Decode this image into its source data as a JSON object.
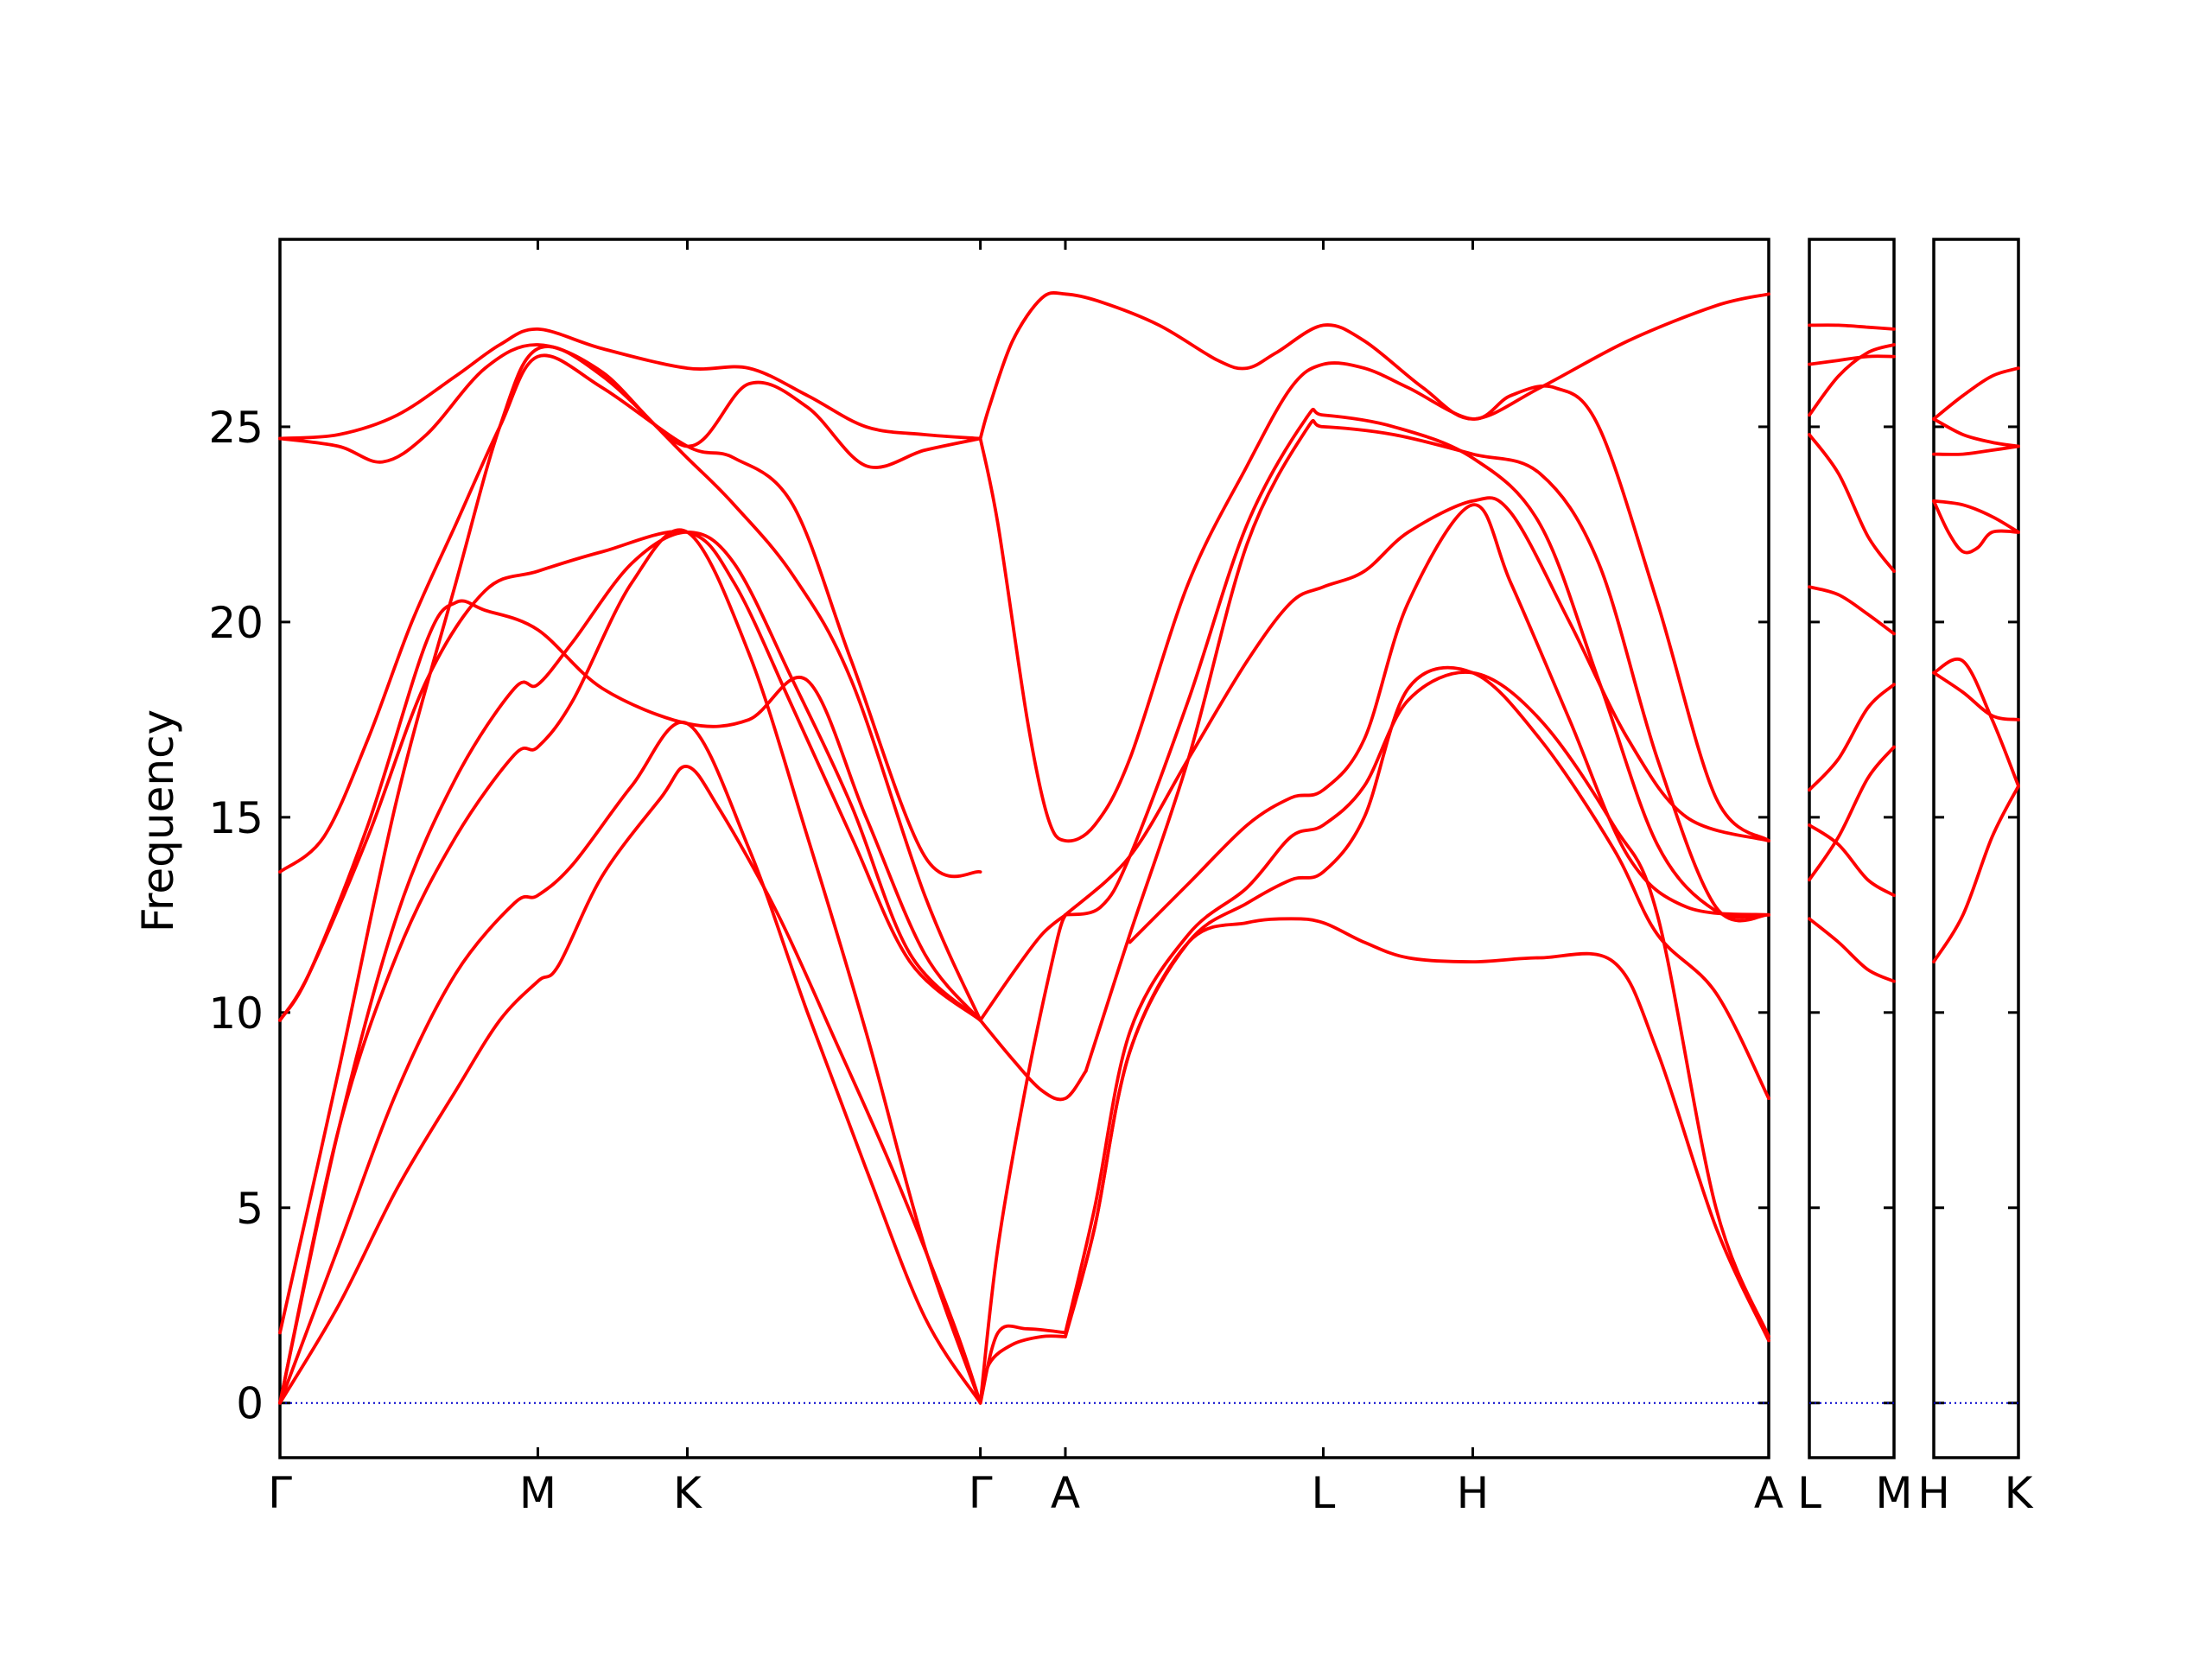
{
  "chart_data": {
    "type": "line",
    "ylabel": "Frequency",
    "ylim": [
      -1.4,
      29.8
    ],
    "y_ticks": [
      0,
      5,
      10,
      15,
      20,
      25
    ],
    "colors": {
      "bands": "#ff0000",
      "zero_line": "#0000cc",
      "frame": "#000000"
    },
    "panels": [
      {
        "xlim": [
          0,
          5.08
        ],
        "x_ticks": [
          {
            "x": 0,
            "label": "Γ"
          },
          {
            "x": 0.88,
            "label": "M"
          },
          {
            "x": 1.39,
            "label": "K"
          },
          {
            "x": 2.39,
            "label": "Γ"
          },
          {
            "x": 2.68,
            "label": "A"
          },
          {
            "x": 3.56,
            "label": "L"
          },
          {
            "x": 4.07,
            "label": "H"
          },
          {
            "x": 5.08,
            "label": "A"
          }
        ],
        "series": [
          {
            "x": [
              0,
              0.2,
              0.4,
              0.6,
              0.75,
              0.88,
              0.95,
              1.1,
              1.3,
              1.39,
              1.5,
              1.7,
              1.9,
              2.1,
              2.3,
              2.39
            ],
            "values": [
              0,
              2.5,
              5.5,
              8.0,
              9.8,
              10.8,
              11.2,
              13.5,
              15.5,
              16.3,
              15.2,
              12.5,
              9.2,
              5.8,
              2.0,
              0
            ]
          },
          {
            "x": [
              0,
              0.2,
              0.4,
              0.6,
              0.8,
              0.88,
              1.0,
              1.2,
              1.39,
              1.6,
              1.8,
              2.0,
              2.2,
              2.39
            ],
            "values": [
              0,
              4.0,
              8.0,
              11.0,
              12.8,
              13.0,
              13.8,
              15.8,
              17.4,
              14.2,
              10.0,
              6.0,
              2.2,
              0
            ]
          },
          {
            "x": [
              0,
              0.2,
              0.4,
              0.6,
              0.8,
              0.88,
              1.0,
              1.2,
              1.39,
              1.6,
              1.8,
              2.0,
              2.2,
              2.39
            ],
            "values": [
              0,
              7.0,
              11.5,
              14.5,
              16.6,
              16.8,
              18.0,
              21.0,
              22.3,
              19.2,
              14.5,
              9.5,
              4.0,
              0
            ]
          },
          {
            "x": [
              0,
              0.2,
              0.4,
              0.6,
              0.8,
              0.88,
              1.0,
              1.2,
              1.39,
              1.55,
              1.75,
              1.95,
              2.15,
              2.39
            ],
            "values": [
              0,
              7.0,
              12.5,
              16.0,
              18.3,
              18.4,
              19.5,
              21.5,
              22.3,
              21.5,
              18.5,
              15.3,
              11.5,
              9.8
            ]
          },
          {
            "x": [
              0,
              0.1,
              0.3,
              0.5,
              0.6,
              0.7,
              0.88,
              1.1,
              1.39,
              1.6,
              1.8,
              2.0,
              2.2,
              2.39
            ],
            "values": [
              9.8,
              11.0,
              14.8,
              19.5,
              20.5,
              20.3,
              19.8,
              18.3,
              17.4,
              17.5,
              18.5,
              15.0,
              11.5,
              9.8
            ]
          },
          {
            "x": [
              0,
              0.1,
              0.3,
              0.5,
              0.7,
              0.88,
              1.1,
              1.39,
              1.55,
              1.75,
              1.95,
              2.15,
              2.39
            ],
            "values": [
              9.8,
              11.0,
              14.5,
              18.5,
              20.8,
              21.3,
              21.8,
              22.3,
              21.0,
              17.8,
              14.5,
              11.3,
              9.8
            ]
          },
          {
            "x": [
              0,
              0.15,
              0.3,
              0.45,
              0.6,
              0.75,
              0.88,
              1.1,
              1.39,
              1.55,
              1.75,
              1.95,
              2.2,
              2.39
            ],
            "values": [
              13.6,
              14.5,
              17.0,
              20.0,
              22.5,
              25.0,
              26.8,
              26.0,
              24.5,
              24.2,
              23.0,
              19.0,
              14.0,
              13.6
            ]
          },
          {
            "x": [
              0,
              0.2,
              0.4,
              0.6,
              0.75,
              0.88,
              1.1,
              1.39,
              1.55,
              1.75,
              1.95,
              2.2,
              2.39
            ],
            "values": [
              1.8,
              8.5,
              15.5,
              21.0,
              25.0,
              27.0,
              26.3,
              24.2,
              23.0,
              21.2,
              18.5,
              13.0,
              9.8
            ]
          },
          {
            "x": [
              0,
              0.2,
              0.35,
              0.5,
              0.7,
              0.88,
              1.1,
              1.39,
              1.6,
              1.8,
              2.0,
              2.2,
              2.39
            ],
            "values": [
              24.7,
              24.5,
              24.1,
              24.8,
              26.5,
              27.1,
              26.4,
              24.5,
              26.1,
              25.5,
              24.0,
              24.4,
              24.7
            ]
          },
          {
            "x": [
              0,
              0.2,
              0.4,
              0.6,
              0.75,
              0.88,
              1.1,
              1.39,
              1.6,
              1.8,
              2.0,
              2.2,
              2.39
            ],
            "values": [
              24.7,
              24.8,
              25.3,
              26.3,
              27.1,
              27.5,
              27.0,
              26.5,
              26.5,
              25.8,
              25.0,
              24.8,
              24.7
            ]
          },
          {
            "x": [
              2.39,
              2.42,
              2.5,
              2.6,
              2.68,
              2.8,
              3.0,
              3.2,
              3.3,
              3.4,
              3.56,
              3.7,
              3.9,
              4.07,
              4.3,
              4.6,
              4.9,
              5.08
            ],
            "values": [
              24.7,
              25.5,
              27.2,
              28.3,
              28.4,
              28.2,
              27.6,
              26.7,
              26.5,
              26.9,
              27.6,
              27.2,
              26.0,
              25.2,
              26.0,
              27.2,
              28.1,
              28.4
            ]
          },
          {
            "x": [
              2.39,
              2.45,
              2.55,
              2.62,
              2.68,
              2.78,
              2.9,
              3.1,
              3.3,
              3.45,
              3.56,
              3.7,
              3.85,
              4.07,
              4.2,
              4.35,
              4.5,
              4.7,
              4.9,
              5.08
            ],
            "values": [
              24.7,
              22.5,
              17.5,
              15.0,
              14.4,
              14.8,
              16.5,
              21.0,
              24.0,
              26.0,
              26.6,
              26.5,
              26.0,
              25.2,
              25.8,
              26.0,
              25.0,
              20.5,
              15.5,
              14.4
            ]
          },
          {
            "x": [
              2.39,
              2.45,
              2.55,
              2.65,
              2.68
            ],
            "values": [
              0,
              4.0,
              8.3,
              11.8,
              12.5
            ]
          },
          {
            "x": [
              2.39,
              2.5,
              2.6,
              2.68
            ],
            "values": [
              9.8,
              11.0,
              12.0,
              12.5
            ]
          },
          {
            "x": [
              2.39,
              2.5,
              2.6,
              2.68,
              2.75
            ],
            "values": [
              9.8,
              8.8,
              8.0,
              7.8,
              8.5
            ]
          },
          {
            "x": [
              2.75,
              2.9,
              3.1,
              3.3,
              3.5,
              3.56,
              3.8,
              4.07,
              4.3,
              4.5,
              4.7,
              4.9,
              5.08
            ],
            "values": [
              8.5,
              12.0,
              16.5,
              22.0,
              24.9,
              25.0,
              24.8,
              24.3,
              23.8,
              21.5,
              16.5,
              12.7,
              12.5
            ]
          },
          {
            "x": [
              2.68,
              2.8,
              2.9,
              3.1,
              3.3,
              3.5,
              3.56,
              3.8,
              4.07,
              4.3,
              4.5,
              4.7,
              4.9,
              5.08
            ],
            "values": [
              12.5,
              12.7,
              14.0,
              18.0,
              22.5,
              25.2,
              25.3,
              25.0,
              24.2,
              22.5,
              18.5,
              14.3,
              12.6,
              12.5
            ]
          },
          {
            "x": [
              2.39,
              2.42,
              2.5,
              2.6,
              2.68
            ],
            "values": [
              0,
              1.0,
              1.5,
              1.7,
              1.7
            ]
          },
          {
            "x": [
              2.39,
              2.45,
              2.55,
              2.68
            ],
            "values": [
              0,
              1.8,
              1.9,
              1.8
            ]
          },
          {
            "x": [
              2.68,
              2.78,
              2.9,
              3.1,
              3.3,
              3.45,
              3.56,
              3.7,
              3.85,
              4.07,
              4.3,
              4.55,
              4.7,
              4.9,
              5.08
            ],
            "values": [
              1.8,
              5.0,
              9.5,
              12.0,
              13.2,
              14.5,
              14.8,
              15.8,
              18.0,
              18.7,
              17.5,
              14.8,
              12.5,
              5.0,
              1.7
            ]
          },
          {
            "x": [
              2.68,
              2.78,
              2.9,
              3.1,
              3.3,
              3.45,
              3.56,
              3.7,
              3.85,
              4.07,
              4.3,
              4.55,
              4.7,
              4.9,
              5.08
            ],
            "values": [
              1.7,
              4.5,
              9.0,
              11.8,
              12.3,
              12.4,
              12.3,
              11.8,
              11.4,
              11.3,
              11.4,
              11.3,
              9.0,
              4.5,
              1.6
            ]
          },
          {
            "x": [
              2.68,
              2.78,
              2.9,
              3.1,
              3.3,
              3.45,
              3.56,
              3.7,
              3.85,
              4.07,
              4.3,
              4.55,
              4.7,
              4.9,
              5.08
            ],
            "values": [
              1.7,
              4.5,
              9.0,
              11.8,
              12.8,
              13.4,
              13.6,
              15.0,
              18.3,
              18.7,
              17.0,
              14.2,
              12.0,
              10.5,
              7.8
            ]
          },
          {
            "x": [
              2.9,
              3.1,
              3.3,
              3.45,
              3.56,
              3.7,
              3.85,
              4.07,
              4.2,
              4.4,
              4.6,
              4.8,
              5.08
            ],
            "values": [
              11.8,
              13.3,
              14.8,
              15.5,
              15.7,
              17.0,
              20.5,
              23.0,
              21.0,
              17.5,
              14.0,
              12.7,
              12.5
            ]
          },
          {
            "x": [
              2.68,
              2.9,
              3.1,
              3.3,
              3.45,
              3.56,
              3.7,
              3.85,
              4.07,
              4.2,
              4.4,
              4.6,
              4.8,
              5.08
            ],
            "values": [
              12.5,
              14.0,
              16.5,
              19.0,
              20.5,
              20.9,
              21.3,
              22.3,
              23.1,
              22.8,
              20.0,
              17.0,
              15.0,
              14.4
            ]
          }
        ]
      },
      {
        "xlim": [
          0,
          0.29
        ],
        "x_ticks": [
          {
            "x": 0,
            "label": "L"
          },
          {
            "x": 0.29,
            "label": "M"
          }
        ],
        "series": [
          {
            "x": [
              0,
              0.1,
              0.2,
              0.29
            ],
            "values": [
              27.6,
              27.6,
              27.55,
              27.5
            ]
          },
          {
            "x": [
              0,
              0.1,
              0.2,
              0.29
            ],
            "values": [
              25.3,
              26.3,
              26.9,
              27.1
            ]
          },
          {
            "x": [
              0,
              0.1,
              0.2,
              0.29
            ],
            "values": [
              26.6,
              26.7,
              26.8,
              26.8
            ]
          },
          {
            "x": [
              0,
              0.1,
              0.2,
              0.29
            ],
            "values": [
              24.8,
              23.8,
              22.2,
              21.3
            ]
          },
          {
            "x": [
              0,
              0.1,
              0.2,
              0.29
            ],
            "values": [
              20.9,
              20.7,
              20.2,
              19.7
            ]
          },
          {
            "x": [
              0,
              0.1,
              0.2,
              0.29
            ],
            "values": [
              15.7,
              16.5,
              17.8,
              18.4
            ]
          },
          {
            "x": [
              0,
              0.1,
              0.2,
              0.29
            ],
            "values": [
              13.4,
              14.5,
              16.0,
              16.8
            ]
          },
          {
            "x": [
              0,
              0.1,
              0.2,
              0.29
            ],
            "values": [
              14.8,
              14.3,
              13.4,
              13.0
            ]
          },
          {
            "x": [
              0,
              0.1,
              0.2,
              0.29
            ],
            "values": [
              12.4,
              11.8,
              11.1,
              10.8
            ]
          }
        ]
      },
      {
        "xlim": [
          0,
          0.29
        ],
        "x_ticks": [
          {
            "x": 0,
            "label": "H"
          },
          {
            "x": 0.29,
            "label": "K"
          }
        ],
        "series": [
          {
            "x": [
              0,
              0.1,
              0.2,
              0.29
            ],
            "values": [
              25.2,
              25.8,
              26.3,
              26.5
            ]
          },
          {
            "x": [
              0,
              0.1,
              0.2,
              0.29
            ],
            "values": [
              25.2,
              24.8,
              24.6,
              24.5
            ]
          },
          {
            "x": [
              0,
              0.1,
              0.2,
              0.29
            ],
            "values": [
              24.3,
              24.3,
              24.4,
              24.5
            ]
          },
          {
            "x": [
              0,
              0.05,
              0.1,
              0.15,
              0.2,
              0.29
            ],
            "values": [
              23.1,
              22.3,
              21.8,
              21.9,
              22.3,
              22.3
            ]
          },
          {
            "x": [
              0,
              0.1,
              0.2,
              0.29
            ],
            "values": [
              23.1,
              23.0,
              22.7,
              22.3
            ]
          },
          {
            "x": [
              0,
              0.1,
              0.2,
              0.29
            ],
            "values": [
              18.7,
              19.0,
              17.5,
              15.8
            ]
          },
          {
            "x": [
              0,
              0.1,
              0.2,
              0.29
            ],
            "values": [
              18.7,
              18.2,
              17.6,
              17.5
            ]
          },
          {
            "x": [
              0,
              0.1,
              0.2,
              0.29
            ],
            "values": [
              11.3,
              12.5,
              14.5,
              15.8
            ]
          }
        ]
      }
    ]
  }
}
